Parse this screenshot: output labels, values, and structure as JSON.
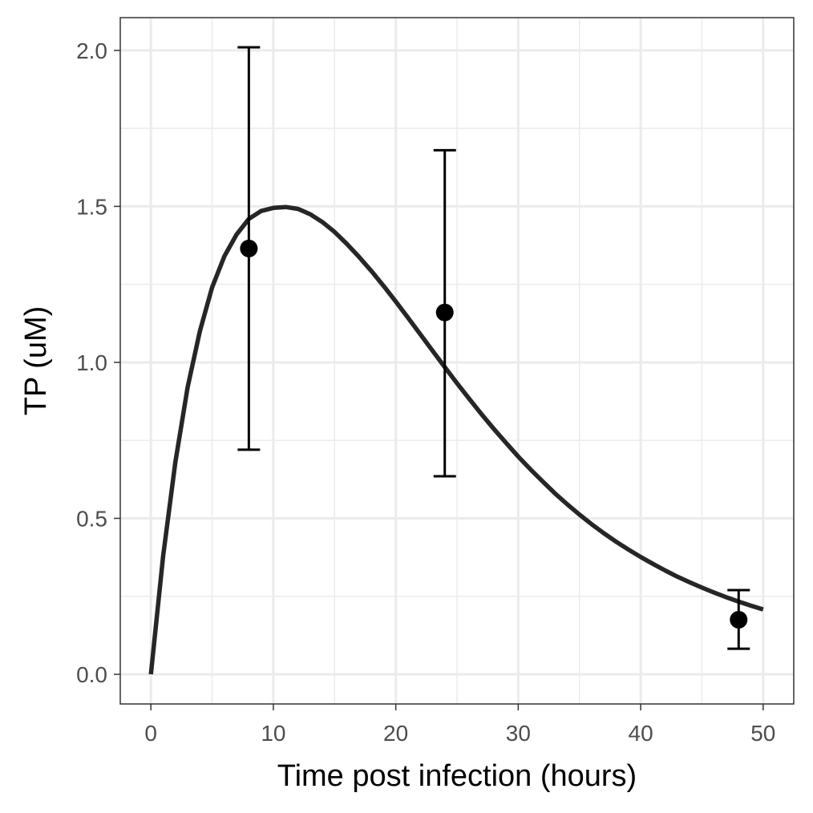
{
  "chart_data": {
    "type": "line",
    "title": "",
    "xlabel": "Time post infection (hours)",
    "ylabel": "TP (uM)",
    "xlim": [
      -2.5,
      52.5
    ],
    "ylim": [
      -0.095,
      2.105
    ],
    "x_ticks": [
      0,
      10,
      20,
      30,
      40,
      50
    ],
    "x_tick_labels": [
      "0",
      "10",
      "20",
      "30",
      "40",
      "50"
    ],
    "y_ticks": [
      0.0,
      0.5,
      1.0,
      1.5,
      2.0
    ],
    "y_tick_labels": [
      "0.0",
      "0.5",
      "1.0",
      "1.5",
      "2.0"
    ],
    "grid": true,
    "series": [
      {
        "kind": "curve",
        "color": "#262626",
        "x": [
          0,
          1,
          2,
          3,
          4,
          5,
          6,
          7,
          8,
          9,
          10,
          11,
          12,
          13,
          14,
          15,
          16,
          17,
          18,
          19,
          20,
          21,
          22,
          23,
          24,
          25,
          26,
          27,
          28,
          29,
          30,
          31,
          32,
          33,
          34,
          35,
          36,
          37,
          38,
          39,
          40,
          41,
          42,
          43,
          44,
          45,
          46,
          47,
          48,
          49,
          50
        ],
        "y": [
          0.0,
          0.38,
          0.68,
          0.92,
          1.1,
          1.24,
          1.34,
          1.41,
          1.46,
          1.485,
          1.495,
          1.498,
          1.492,
          1.475,
          1.45,
          1.418,
          1.38,
          1.338,
          1.293,
          1.245,
          1.195,
          1.143,
          1.09,
          1.037,
          0.985,
          0.933,
          0.883,
          0.834,
          0.787,
          0.742,
          0.698,
          0.657,
          0.618,
          0.58,
          0.545,
          0.512,
          0.481,
          0.452,
          0.425,
          0.4,
          0.376,
          0.354,
          0.333,
          0.313,
          0.295,
          0.278,
          0.262,
          0.247,
          0.233,
          0.22,
          0.208
        ]
      },
      {
        "kind": "points_with_errorbars",
        "color": "#000000",
        "x": [
          8,
          24,
          48
        ],
        "y": [
          1.365,
          1.16,
          0.175
        ],
        "ymin": [
          0.72,
          0.635,
          0.082
        ],
        "ymax": [
          2.01,
          1.68,
          0.27
        ]
      }
    ]
  }
}
